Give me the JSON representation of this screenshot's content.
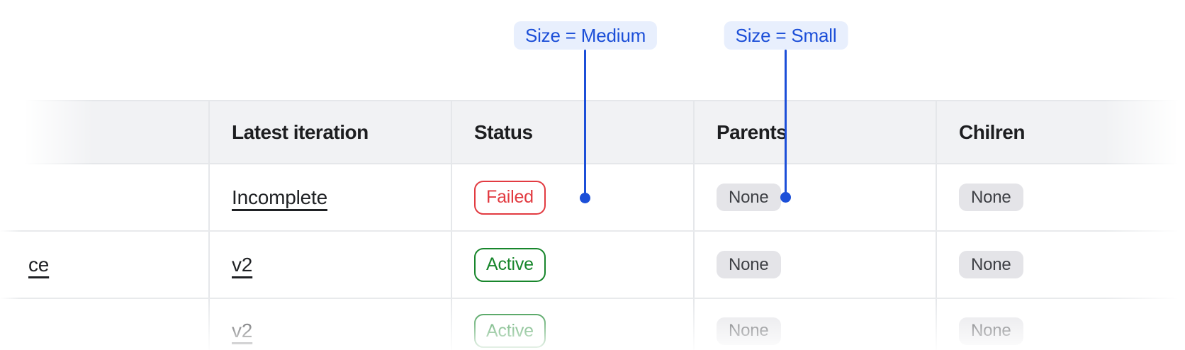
{
  "annotations": {
    "medium": {
      "label": "Size = Medium"
    },
    "small": {
      "label": "Size = Small"
    }
  },
  "table": {
    "columns": {
      "name": "",
      "latest_iteration": "Latest iteration",
      "status": "Status",
      "parents": "Parents",
      "children": "Chilren"
    },
    "rows": [
      {
        "name": "",
        "latest_iteration": "Incomplete",
        "status": "Failed",
        "status_kind": "failed",
        "parents": "None",
        "children": "None",
        "faded": false
      },
      {
        "name": "ce",
        "latest_iteration": "v2",
        "status": "Active",
        "status_kind": "active",
        "parents": "None",
        "children": "None",
        "faded": false
      },
      {
        "name": "",
        "latest_iteration": "v2",
        "status": "Active",
        "status_kind": "active",
        "parents": "None",
        "children": "None",
        "faded": true
      }
    ]
  },
  "colors": {
    "annotation_blue": "#1c4fd8",
    "annotation_pill_bg": "#e8effd",
    "failed_red": "#e23b41",
    "active_green": "#18862c",
    "none_chip_bg": "#e4e4e8",
    "none_chip_text": "#3e4045",
    "header_bg": "#f1f2f4",
    "grid_border": "#e5e7ea",
    "text": "#1f2124"
  }
}
